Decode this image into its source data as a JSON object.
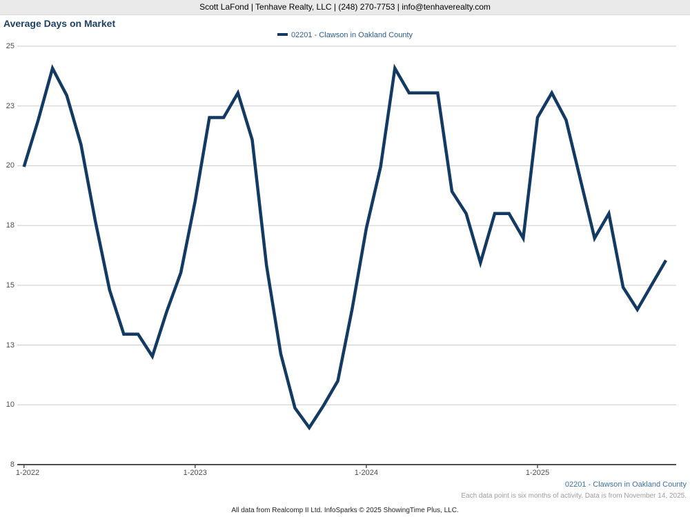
{
  "header": {
    "text": "Scott LaFond | Tenhave Realty, LLC | (248) 270-7753 | info@tenhaverealty.com"
  },
  "chart": {
    "title": "Average Days on Market",
    "series_label": "02201 - Clawson in Oakland County"
  },
  "footer": {
    "series_label": "02201 - Clawson in Oakland County",
    "note": "Each data point is six months of activity. Data is from November 14, 2025.",
    "attribution": "All data from Realcomp II Ltd. InfoSparks © 2025 ShowingTime Plus, LLC."
  },
  "colors": {
    "line": "#123a62",
    "title_text": "#1c4166",
    "legend_text": "#2b5c8e",
    "footnote_blue": "#3c71a8",
    "grid": "#cacaca",
    "axis": "#4d4d4d",
    "tick_label": "#4a4a4a",
    "header_bg": "#eaeaea"
  },
  "chart_data": {
    "type": "line",
    "title": "Average Days on Market",
    "xlabel": "",
    "ylabel": "",
    "grid": true,
    "legend_position": "top-center",
    "ylim": [
      8,
      25
    ],
    "y_grid_labels": [
      25,
      23,
      20,
      18,
      15,
      13,
      10,
      8
    ],
    "x_tick_labels": [
      "1-2022",
      "1-2023",
      "1-2024",
      "1-2025"
    ],
    "x_tick_indices": [
      0,
      12,
      24,
      36
    ],
    "x": [
      "1-2022",
      "2-2022",
      "3-2022",
      "4-2022",
      "5-2022",
      "6-2022",
      "7-2022",
      "8-2022",
      "9-2022",
      "10-2022",
      "11-2022",
      "12-2022",
      "1-2023",
      "2-2023",
      "3-2023",
      "4-2023",
      "5-2023",
      "6-2023",
      "7-2023",
      "8-2023",
      "9-2023",
      "10-2023",
      "11-2023",
      "12-2023",
      "1-2024",
      "2-2024",
      "3-2024",
      "4-2024",
      "5-2024",
      "6-2024",
      "7-2024",
      "8-2024",
      "9-2024",
      "10-2024",
      "11-2024",
      "12-2024",
      "1-2025",
      "2-2025",
      "3-2025",
      "4-2025",
      "5-2025",
      "6-2025",
      "7-2025",
      "8-2025",
      "9-2025",
      "10-2025"
    ],
    "series": [
      {
        "name": "02201 - Clawson in Oakland County",
        "color": "#123a62",
        "values": [
          20.1,
          22.0,
          24.1,
          23.0,
          21.0,
          17.9,
          15.1,
          13.3,
          13.3,
          12.4,
          14.2,
          15.8,
          18.7,
          22.1,
          22.1,
          23.1,
          21.2,
          16.1,
          12.5,
          10.3,
          9.5,
          10.4,
          11.4,
          14.3,
          17.6,
          20.1,
          24.1,
          23.1,
          23.1,
          23.1,
          19.1,
          18.2,
          16.2,
          18.2,
          18.2,
          17.2,
          22.1,
          23.1,
          22.0,
          19.6,
          17.2,
          18.2,
          15.2,
          14.3,
          15.3,
          16.3
        ]
      }
    ]
  }
}
